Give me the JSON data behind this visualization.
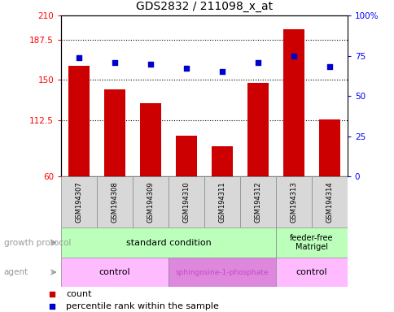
{
  "title": "GDS2832 / 211098_x_at",
  "samples": [
    "GSM194307",
    "GSM194308",
    "GSM194309",
    "GSM194310",
    "GSM194311",
    "GSM194312",
    "GSM194313",
    "GSM194314"
  ],
  "bar_values": [
    163,
    141,
    128,
    98,
    88,
    147,
    197,
    113
  ],
  "scatter_values": [
    74,
    71,
    70,
    67,
    65,
    71,
    75,
    68
  ],
  "bar_color": "#cc0000",
  "scatter_color": "#0000cc",
  "ylim_left": [
    60,
    210
  ],
  "ylim_right": [
    0,
    100
  ],
  "yticks_left": [
    60,
    112.5,
    150,
    187.5,
    210
  ],
  "ytick_labels_left": [
    "60",
    "112.5",
    "150",
    "187.5",
    "210"
  ],
  "yticks_right": [
    0,
    25,
    50,
    75,
    100
  ],
  "ytick_labels_right": [
    "0",
    "25",
    "50",
    "75",
    "100%"
  ],
  "hlines": [
    112.5,
    150,
    187.5
  ],
  "gp_label": "growth protocol",
  "agent_label": "agent",
  "legend_count_label": "count",
  "legend_percentile_label": "percentile rank within the sample",
  "gp_group1_label": "standard condition",
  "gp_group2_label": "feeder-free\nMatrigel",
  "ag_group1_label": "control",
  "ag_group2_label": "sphingosine-1-phosphate",
  "ag_group3_label": "control",
  "gp_color": "#bbffbb",
  "ag_light_color": "#ffbbff",
  "ag_dark_color": "#dd88dd",
  "ag_dark_text_color": "#cc44cc",
  "sample_box_color": "#d8d8d8",
  "left_label_color": "#999999",
  "arrow_color": "#999999"
}
